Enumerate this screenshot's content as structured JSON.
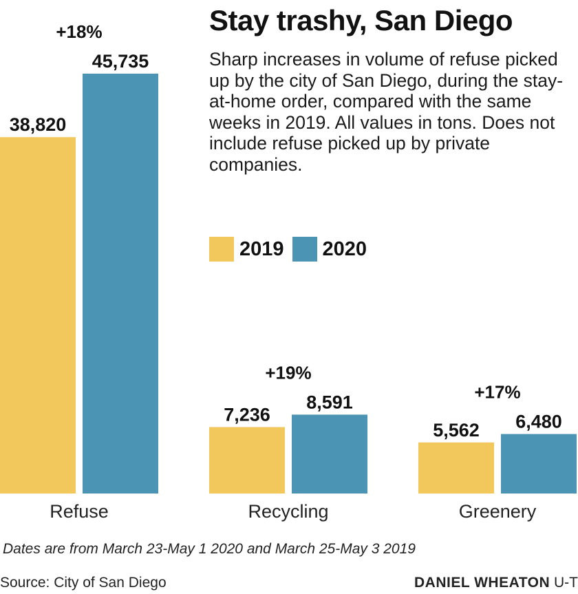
{
  "title": "Stay trashy, San Diego",
  "subtitle": "Sharp increases in volume of refuse picked up by the city of San Diego, during the stay-at-home order, compared with the same weeks in 2019. All values in tons. Does not include refuse picked up by private companies.",
  "note": "Dates are from March 23-May 1 2020 and March 25-May 3 2019",
  "source": "Source: City of San Diego",
  "credit": {
    "name": "DANIEL WHEATON",
    "org": "U-T"
  },
  "colors": {
    "2019": "#f2c75c",
    "2020": "#4b94b3"
  },
  "chart_data": {
    "type": "bar",
    "categories": [
      "Refuse",
      "Recycling",
      "Greenery"
    ],
    "series": [
      {
        "name": "2019",
        "values": [
          38820,
          7236,
          5562
        ],
        "labels": [
          "38,820",
          "7,236",
          "5,562"
        ]
      },
      {
        "name": "2020",
        "values": [
          45735,
          8591,
          6480
        ],
        "labels": [
          "45,735",
          "8,591",
          "6,480"
        ]
      }
    ],
    "changes": [
      "+18%",
      "+19%",
      "+17%"
    ],
    "ylim": [
      0,
      45735
    ]
  }
}
